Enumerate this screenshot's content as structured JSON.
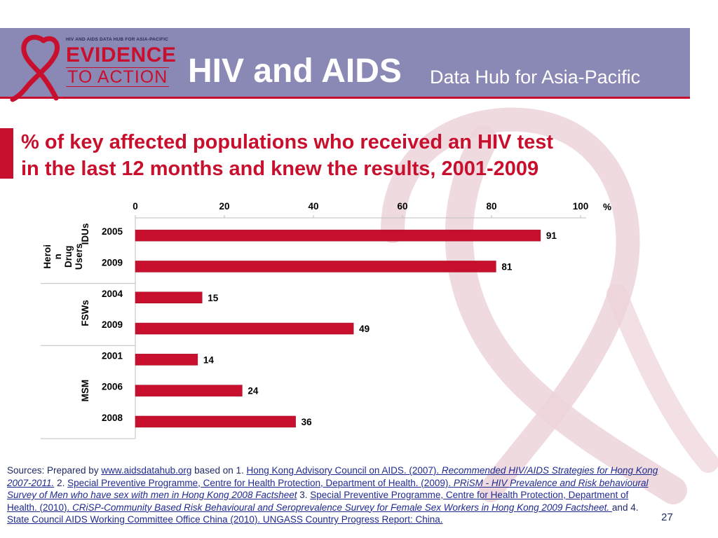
{
  "header": {
    "logo": {
      "small_text": "HIV AND AIDS DATA HUB FOR ASIA-PACIFIC",
      "line1": "EVIDENCE",
      "line2": "TO ACTION"
    },
    "title_main": "HIV and AIDS",
    "title_sub": "Data Hub for Asia-Pacific"
  },
  "colors": {
    "header_bg": "#8a88b4",
    "accent_red": "#c8102e",
    "bar": "#c8102e",
    "ribbon": "#e9cdd4"
  },
  "chart_data": {
    "type": "bar",
    "orientation": "horizontal",
    "title_line1": "% of key affected populations who received an HIV test",
    "title_line2": "in the last 12 months and knew the results, 2001-2009",
    "unit": "%",
    "xlim": [
      0,
      100
    ],
    "x_ticks": [
      "0",
      "20",
      "40",
      "60",
      "80",
      "100"
    ],
    "x_tick_values": [
      0,
      20,
      40,
      60,
      80,
      100
    ],
    "groups": [
      {
        "name": "Heroin Drug Users IDUs",
        "label_lines": [
          "Heroi",
          "n",
          "Drug",
          "Users"
        ],
        "sub_label": "IDUs",
        "bars": [
          {
            "year": "2005",
            "value": 91
          },
          {
            "year": "2009",
            "value": 81
          }
        ]
      },
      {
        "name": "FSWs",
        "label_lines": [
          "FSWs"
        ],
        "bars": [
          {
            "year": "2004",
            "value": 15
          },
          {
            "year": "2009",
            "value": 49
          }
        ]
      },
      {
        "name": "MSM",
        "label_lines": [
          "MSM"
        ],
        "bars": [
          {
            "year": "2001",
            "value": 14
          },
          {
            "year": "2006",
            "value": 24
          },
          {
            "year": "2008",
            "value": 36
          }
        ]
      }
    ]
  },
  "sources": {
    "prefix": "Sources: Prepared by ",
    "link1": "www.aidsdatahub.org",
    "text1": "  based on 1. ",
    "link2a": "Hong Kong Advisory Council on AIDS. (2007). ",
    "link2b": "Recommended HIV/AIDS Strategies for Hong Kong 2007-2011.",
    "text2": "  2. ",
    "link3a": "Special Preventive Programme, Centre for Health Protection, Department of Health. (2009). ",
    "link3b": "PRiSM - HIV Prevalence and Risk behavioural Survey of Men who have sex with men in Hong Kong 2008 Factsheet",
    "text3": "  3. ",
    "link4a": "Special Preventive Programme, Centre for Health Protection, Department of Health. (2010). ",
    "link4b": "CRiSP-Community Based Risk Behavioural and Seroprevalence Survey for Female Sex Workers in Hong Kong 2009 Factsheet. ",
    "text4": " and 4. ",
    "link5": "State Council AIDS Working Committee Office China (2010). UNGASS Country Progress Report: China."
  },
  "page_number": "27"
}
